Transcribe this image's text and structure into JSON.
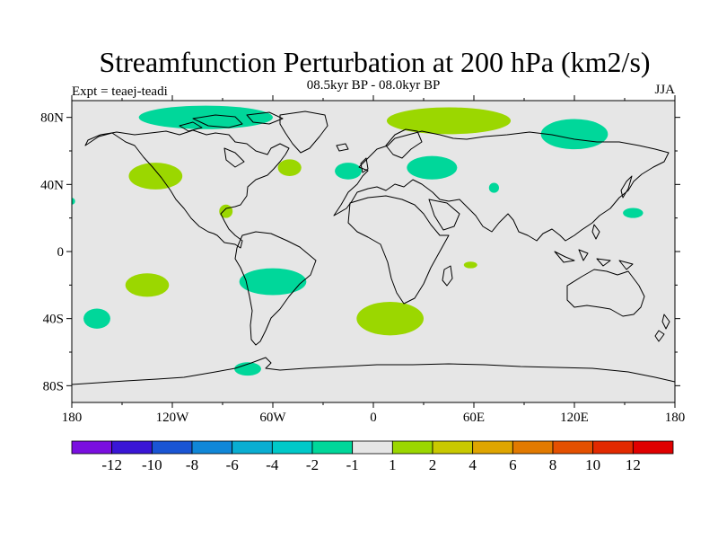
{
  "title": "Streamfunction Perturbation at 200 hPa (km2/s)",
  "subtitle": "08.5kyr BP - 08.0kyr BP",
  "expt_label": "Expt = teaej-teadi",
  "season": "JJA",
  "colors": {
    "ocean_land_fill": "#e6e6e6",
    "coast": "#000000",
    "neg_light": "#00d79a",
    "pos_light": "#9bd700"
  },
  "chart_data": {
    "type": "map",
    "projection": "cylindrical equidistant",
    "lon_range": [
      -180,
      180
    ],
    "lat_range": [
      -90,
      90
    ],
    "x_ticks": [
      {
        "lon": -180,
        "label": "180"
      },
      {
        "lon": -120,
        "label": "120W"
      },
      {
        "lon": -60,
        "label": "60W"
      },
      {
        "lon": 0,
        "label": "0"
      },
      {
        "lon": 60,
        "label": "60E"
      },
      {
        "lon": 120,
        "label": "120E"
      },
      {
        "lon": 180,
        "label": "180"
      }
    ],
    "y_ticks": [
      {
        "lat": 80,
        "label": "80N"
      },
      {
        "lat": 40,
        "label": "40N"
      },
      {
        "lat": 0,
        "label": "0"
      },
      {
        "lat": -40,
        "label": "40S"
      },
      {
        "lat": -80,
        "label": "80S"
      }
    ],
    "colorbar": {
      "colors": [
        "#7a0fe0",
        "#3a16d6",
        "#1a55d4",
        "#1087d8",
        "#0aaed2",
        "#00c9c9",
        "#00d79a",
        "#e6e6e6",
        "#9bd700",
        "#c9c900",
        "#dfa500",
        "#e27a00",
        "#e45000",
        "#e22a00",
        "#e00000"
      ],
      "labels": [
        "-12",
        "-10",
        "-8",
        "-6",
        "-4",
        "-2",
        "-1",
        "1",
        "2",
        "4",
        "6",
        "8",
        "10",
        "12"
      ]
    },
    "anomalies": [
      {
        "sign": "neg",
        "level": "-2 to -1",
        "lon": -100,
        "lat": 80,
        "rlon": 40,
        "rlat": 7
      },
      {
        "sign": "neg",
        "level": "-2 to -1",
        "lon": -15,
        "lat": 48,
        "rlon": 8,
        "rlat": 5
      },
      {
        "sign": "neg",
        "level": "-2 to -1",
        "lon": 35,
        "lat": 50,
        "rlon": 15,
        "rlat": 7
      },
      {
        "sign": "neg",
        "level": "-2 to -1",
        "lon": 120,
        "lat": 70,
        "rlon": 20,
        "rlat": 9
      },
      {
        "sign": "neg",
        "level": "-2 to -1",
        "lon": 72,
        "lat": 38,
        "rlon": 3,
        "rlat": 3
      },
      {
        "sign": "neg",
        "level": "-2 to -1",
        "lon": 155,
        "lat": 23,
        "rlon": 6,
        "rlat": 3
      },
      {
        "sign": "neg",
        "level": "-2 to -1",
        "lon": -180,
        "lat": 30,
        "rlon": 2,
        "rlat": 2
      },
      {
        "sign": "neg",
        "level": "-2 to -1",
        "lon": -60,
        "lat": -18,
        "rlon": 20,
        "rlat": 8
      },
      {
        "sign": "neg",
        "level": "-2 to -1",
        "lon": -165,
        "lat": -40,
        "rlon": 8,
        "rlat": 6
      },
      {
        "sign": "neg",
        "level": "-2 to -1",
        "lon": -75,
        "lat": -70,
        "rlon": 8,
        "rlat": 4
      },
      {
        "sign": "pos",
        "level": "1 to 2",
        "lon": 45,
        "lat": 78,
        "rlon": 37,
        "rlat": 8
      },
      {
        "sign": "pos",
        "level": "1 to 2",
        "lon": -130,
        "lat": 45,
        "rlon": 16,
        "rlat": 8
      },
      {
        "sign": "pos",
        "level": "1 to 2",
        "lon": -50,
        "lat": 50,
        "rlon": 7,
        "rlat": 5
      },
      {
        "sign": "pos",
        "level": "1 to 2",
        "lon": -88,
        "lat": 24,
        "rlon": 4,
        "rlat": 4
      },
      {
        "sign": "pos",
        "level": "1 to 2",
        "lon": -135,
        "lat": -20,
        "rlon": 13,
        "rlat": 7
      },
      {
        "sign": "pos",
        "level": "1 to 2",
        "lon": 10,
        "lat": -40,
        "rlon": 20,
        "rlat": 10
      },
      {
        "sign": "pos",
        "level": "1 to 2",
        "lon": 58,
        "lat": -8,
        "rlon": 4,
        "rlat": 2
      }
    ]
  }
}
